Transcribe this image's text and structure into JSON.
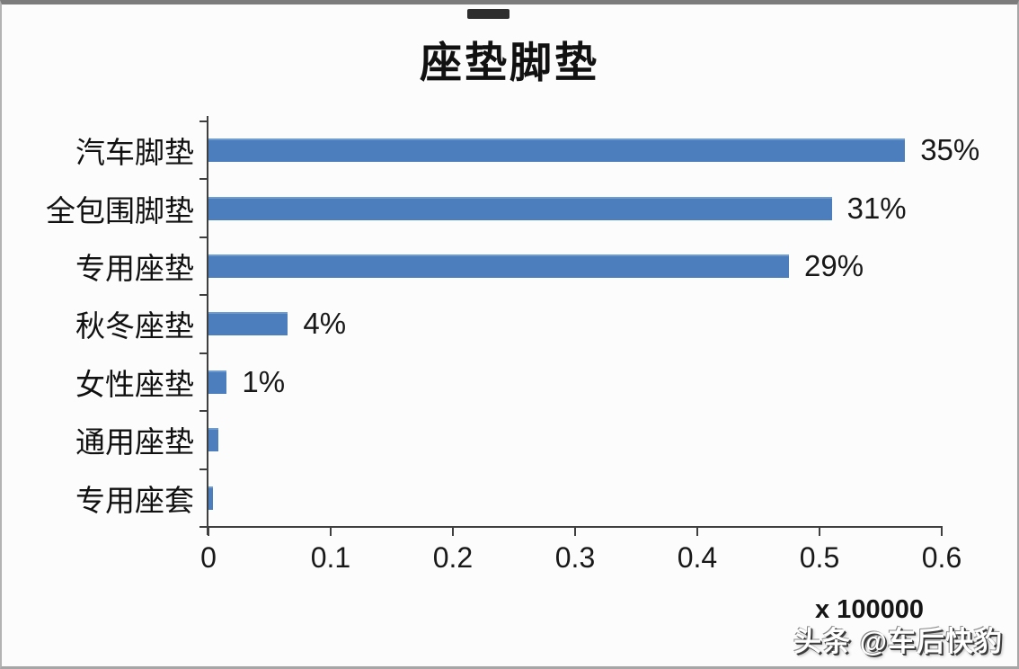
{
  "chart_data": {
    "type": "bar",
    "orientation": "horizontal",
    "title": "座垫脚垫",
    "categories": [
      "汽车脚垫",
      "全包围脚垫",
      "专用座垫",
      "秋冬座垫",
      "女性座垫",
      "通用座垫",
      "专用座套"
    ],
    "values": [
      0.57,
      0.51,
      0.475,
      0.065,
      0.015,
      0.008,
      0.004
    ],
    "bar_labels": [
      "35%",
      "31%",
      "29%",
      "4%",
      "1%",
      "",
      ""
    ],
    "x_ticks": [
      "0",
      "0.1",
      "0.2",
      "0.3",
      "0.4",
      "0.5",
      "0.6"
    ],
    "xlim": [
      0,
      0.6
    ],
    "xlabel": "",
    "ylabel": "",
    "axis_multiplier": "x 100000",
    "legend": "none",
    "grid": false,
    "bar_color": "#4c7dbd",
    "axis_color": "#3f3f3f",
    "units_note": "axis values are in units of 100000"
  },
  "watermark": {
    "text": "头条 @车后快豹"
  }
}
